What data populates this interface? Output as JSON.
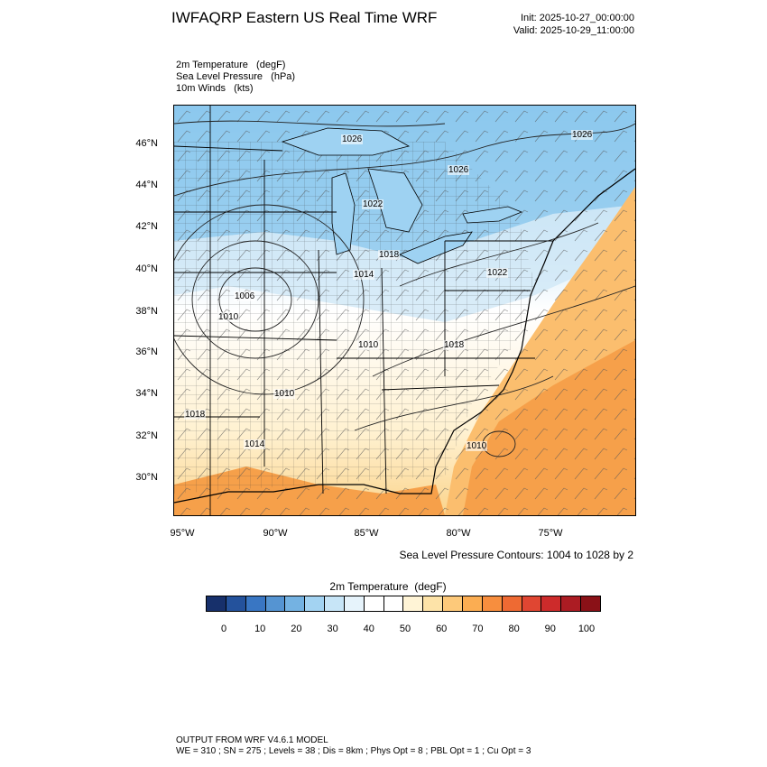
{
  "header": {
    "title": "IWFAQRP Eastern US Real Time WRF",
    "init": "Init: 2025-10-27_00:00:00",
    "valid": "Valid: 2025-10-29_11:00:00"
  },
  "fields": {
    "line1": "2m Temperature   (degF)",
    "line2": "Sea Level Pressure   (hPa)",
    "line3": "10m Winds   (kts)"
  },
  "map": {
    "lat_ticks": [
      "46°N",
      "44°N",
      "42°N",
      "40°N",
      "38°N",
      "36°N",
      "34°N",
      "32°N",
      "30°N"
    ],
    "lon_ticks": [
      "95°W",
      "90°W",
      "85°W",
      "80°W",
      "75°W"
    ],
    "pressure_labels": [
      {
        "value": "1026"
      },
      {
        "value": "1026"
      },
      {
        "value": "1026"
      },
      {
        "value": "1022"
      },
      {
        "value": "1018"
      },
      {
        "value": "1014"
      },
      {
        "value": "1022"
      },
      {
        "value": "1006"
      },
      {
        "value": "1010"
      },
      {
        "value": "1010"
      },
      {
        "value": "1018"
      },
      {
        "value": "1010"
      },
      {
        "value": "1018"
      },
      {
        "value": "1014"
      },
      {
        "value": "1010"
      }
    ],
    "colors": {
      "cold": "#8cc8ee",
      "cool": "#cfe7f6",
      "neutral": "#ffffff",
      "warm": "#fde3b0",
      "hot": "#f6a04a",
      "water": "#9ed2f2"
    }
  },
  "contours_note": "Sea Level Pressure Contours: 1004 to 1028 by 2",
  "legend": {
    "title": "2m Temperature  (degF)",
    "colors": [
      "#17306b",
      "#24529c",
      "#3976c3",
      "#5594d2",
      "#74b2e2",
      "#a3d3f2",
      "#c7e5f7",
      "#e6f3fb",
      "#ffffff",
      "#ffffff",
      "#fff4d6",
      "#fde3a8",
      "#fdc97a",
      "#fbad52",
      "#f78e3e",
      "#ee6a33",
      "#e04632",
      "#cd2b2b",
      "#ac1c23",
      "#8a1117"
    ],
    "labels": [
      "0",
      "10",
      "20",
      "30",
      "40",
      "50",
      "60",
      "70",
      "80",
      "90",
      "100"
    ]
  },
  "footer": {
    "line1": "OUTPUT FROM WRF V4.6.1 MODEL",
    "line2": "WE = 310 ; SN = 275 ; Levels = 38 ; Dis = 8km ; Phys Opt = 8 ; PBL Opt = 1 ; Cu Opt = 3"
  }
}
